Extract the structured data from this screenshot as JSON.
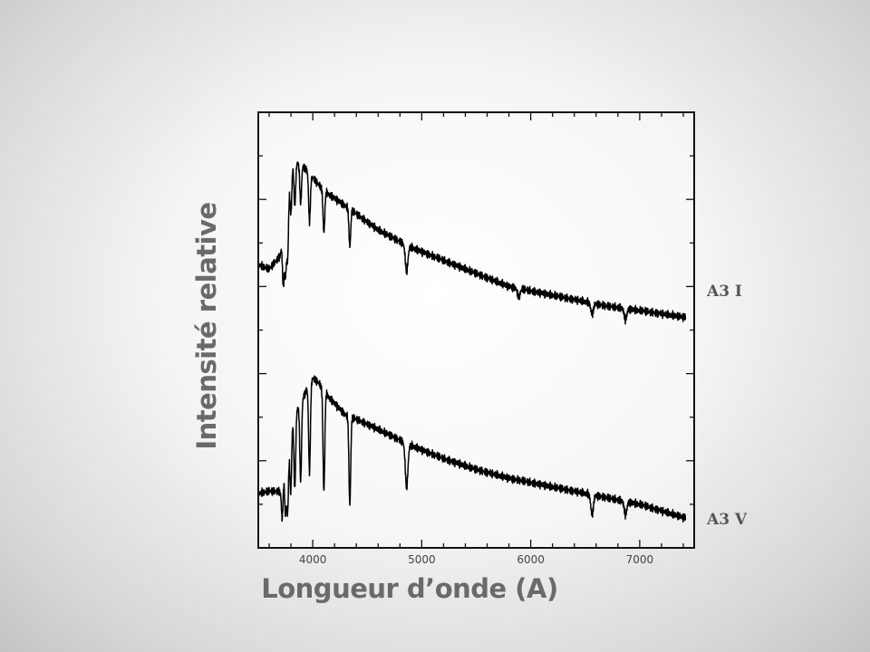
{
  "chart_data": {
    "type": "line",
    "title": "",
    "xlabel": "Longueur d’onde (A)",
    "ylabel": "Intensité relative",
    "xlim": [
      3500,
      7500
    ],
    "ylim": [
      0,
      10
    ],
    "x_ticks": [
      4000,
      5000,
      6000,
      7000
    ],
    "y_tick_labels": "none",
    "grid": false,
    "legend": "none",
    "line_color": "#000000",
    "series": [
      {
        "name": "A3 I",
        "continuum": [
          [
            3500,
            6.5
          ],
          [
            3600,
            6.4
          ],
          [
            3700,
            6.7
          ],
          [
            3760,
            7.8
          ],
          [
            3800,
            8.9
          ],
          [
            3900,
            8.8
          ],
          [
            4000,
            8.5
          ],
          [
            4100,
            8.2
          ],
          [
            4300,
            7.85
          ],
          [
            4600,
            7.3
          ],
          [
            4900,
            6.9
          ],
          [
            5200,
            6.6
          ],
          [
            5500,
            6.3
          ],
          [
            5800,
            6.0
          ],
          [
            6100,
            5.85
          ],
          [
            6400,
            5.7
          ],
          [
            6700,
            5.55
          ],
          [
            7000,
            5.45
          ],
          [
            7400,
            5.3
          ]
        ],
        "lines": [
          [
            3730,
            1.2
          ],
          [
            3750,
            1.3
          ],
          [
            3770,
            1.4
          ],
          [
            3800,
            1.2
          ],
          [
            3835,
            1.0
          ],
          [
            3889,
            0.9
          ],
          [
            3970,
            1.1
          ],
          [
            4102,
            0.95
          ],
          [
            4340,
            0.85
          ],
          [
            4861,
            0.6
          ],
          [
            5890,
            0.2
          ],
          [
            6563,
            0.25
          ],
          [
            6870,
            0.25
          ]
        ]
      },
      {
        "name": "A3 V",
        "continuum": [
          [
            3500,
            1.25
          ],
          [
            3600,
            1.3
          ],
          [
            3700,
            1.3
          ],
          [
            3750,
            2.0
          ],
          [
            3800,
            2.9
          ],
          [
            3900,
            3.4
          ],
          [
            4000,
            3.9
          ],
          [
            4050,
            3.8
          ],
          [
            4150,
            3.45
          ],
          [
            4300,
            3.05
          ],
          [
            4450,
            2.9
          ],
          [
            4700,
            2.6
          ],
          [
            4900,
            2.35
          ],
          [
            5200,
            2.05
          ],
          [
            5500,
            1.8
          ],
          [
            5800,
            1.6
          ],
          [
            6100,
            1.45
          ],
          [
            6400,
            1.3
          ],
          [
            6700,
            1.15
          ],
          [
            7000,
            1.0
          ],
          [
            7400,
            0.7
          ]
        ],
        "lines": [
          [
            3720,
            0.9
          ],
          [
            3750,
            1.2
          ],
          [
            3770,
            1.5
          ],
          [
            3798,
            1.6
          ],
          [
            3835,
            1.7
          ],
          [
            3889,
            1.8
          ],
          [
            3970,
            2.0
          ],
          [
            4102,
            2.3
          ],
          [
            4340,
            2.0
          ],
          [
            4861,
            1.0
          ],
          [
            6563,
            0.45
          ],
          [
            6870,
            0.3
          ]
        ]
      }
    ]
  }
}
